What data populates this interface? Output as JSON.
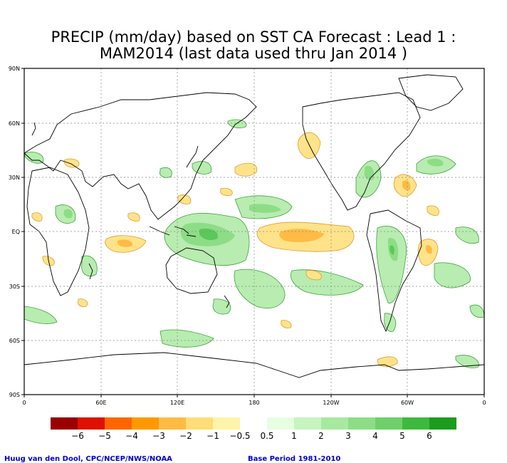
{
  "title_line1": "PRECIP (mm/day) based on SST CA Forecast : Lead 1 :",
  "title_line2": "MAM2014 (last data used thru Jan 2014 )",
  "lat_labels": [
    "90N",
    "60N",
    "30N",
    "EQ",
    "30S",
    "60S",
    "90S"
  ],
  "lon_labels": [
    "0",
    "60E",
    "120E",
    "180",
    "120W",
    "60W",
    "0"
  ],
  "colorbar": {
    "colors": [
      "#990000",
      "#dd1100",
      "#ff6600",
      "#ff9900",
      "#ffbb44",
      "#ffdd77",
      "#fff4aa",
      "#ffffff",
      "#e6ffe0",
      "#c6f5bf",
      "#a8e9a0",
      "#8ddd86",
      "#6fcf6a",
      "#3dba3d",
      "#1c9c1c"
    ],
    "labels": [
      "−6",
      "−5",
      "−4",
      "−3",
      "−2",
      "−1",
      "−0.5",
      "0.5",
      "1",
      "2",
      "3",
      "4",
      "5",
      "6"
    ]
  },
  "credit_left": "Huug van den Dool, CPC/NCEP/NWS/NOAA",
  "credit_right": "Base Period 1981-2010"
}
